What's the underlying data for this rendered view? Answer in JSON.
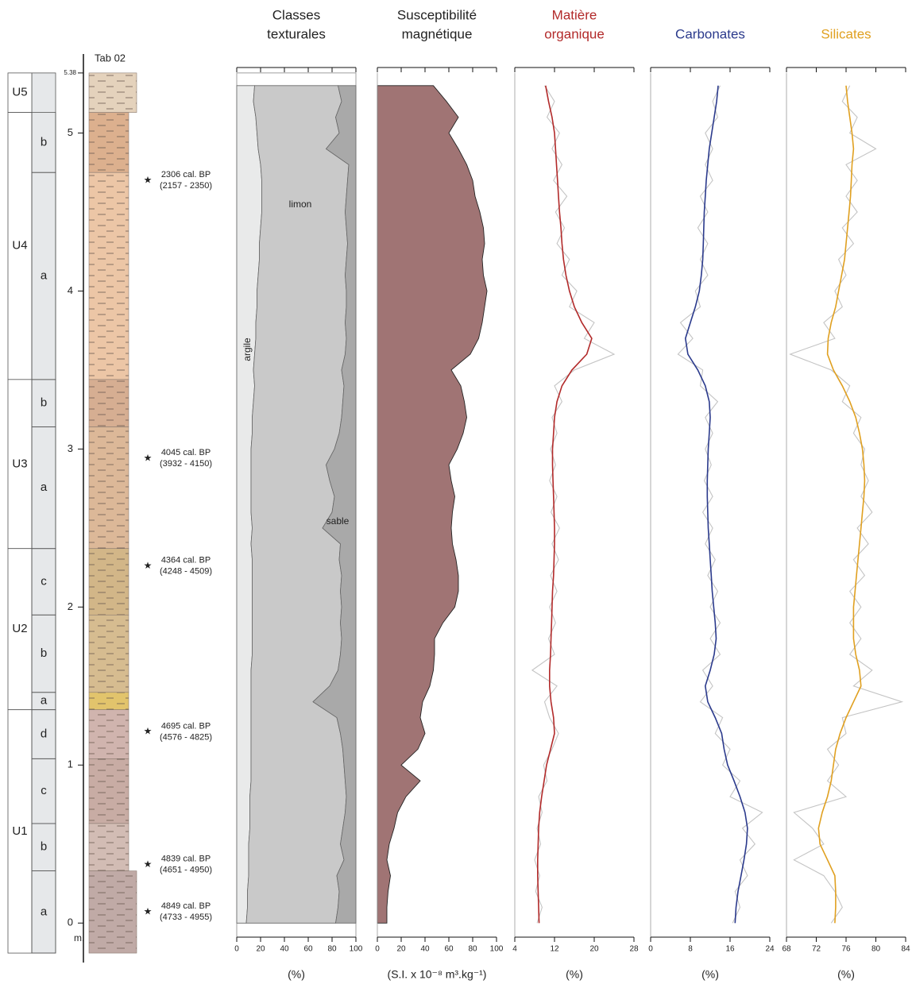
{
  "chart_data": [
    {
      "type": "strat-log",
      "title": "Tab 02",
      "unit_label": "m.",
      "top": 5.38,
      "ylim": [
        -0.25,
        5.5
      ],
      "yticks": [
        0,
        1,
        2,
        3,
        4,
        5
      ],
      "depth": [
        0.0,
        0.1,
        0.2,
        0.3,
        0.4,
        0.5,
        0.6,
        0.7,
        0.8,
        0.9,
        1.0,
        1.1,
        1.2,
        1.3,
        1.4,
        1.5,
        1.6,
        1.7,
        1.8,
        1.9,
        2.0,
        2.1,
        2.2,
        2.3,
        2.4,
        2.5,
        2.6,
        2.7,
        2.8,
        2.9,
        3.0,
        3.1,
        3.2,
        3.3,
        3.4,
        3.5,
        3.6,
        3.7,
        3.8,
        3.9,
        4.0,
        4.1,
        4.2,
        4.3,
        4.4,
        4.5,
        4.6,
        4.7,
        4.8,
        4.9,
        5.0,
        5.1,
        5.2,
        5.3
      ],
      "units": [
        {
          "name": "U5",
          "top": 5.38,
          "bottom": 5.13,
          "color": "#e4d2bc",
          "subunits": []
        },
        {
          "name": "U4",
          "top": 5.13,
          "bottom": 3.44,
          "subunits": [
            {
              "name": "b",
              "top": 5.13,
              "bottom": 4.75,
              "color": "#dcb08e"
            },
            {
              "name": "a",
              "top": 4.75,
              "bottom": 3.44,
              "color": "#ecc6a6"
            }
          ]
        },
        {
          "name": "U3",
          "top": 3.44,
          "bottom": 2.37,
          "subunits": [
            {
              "name": "b",
              "top": 3.44,
              "bottom": 3.14,
              "color": "#d6ae92"
            },
            {
              "name": "a",
              "top": 3.14,
              "bottom": 2.37,
              "color": "#dcb898"
            }
          ]
        },
        {
          "name": "U2",
          "top": 2.37,
          "bottom": 1.35,
          "subunits": [
            {
              "name": "c",
              "top": 2.37,
              "bottom": 1.95,
              "color": "#d2b688"
            },
            {
              "name": "b",
              "top": 1.95,
              "bottom": 1.46,
              "color": "#d6bc90"
            },
            {
              "name": "a",
              "top": 1.46,
              "bottom": 1.35,
              "color": "#e2c46c"
            }
          ]
        },
        {
          "name": "U1",
          "top": 1.35,
          "bottom": -0.19,
          "subunits": [
            {
              "name": "d",
              "top": 1.35,
              "bottom": 1.04,
              "color": "#d0b4ae"
            },
            {
              "name": "c",
              "top": 1.04,
              "bottom": 0.63,
              "color": "#c8aca4"
            },
            {
              "name": "b",
              "top": 0.63,
              "bottom": 0.33,
              "color": "#d2bcb4"
            },
            {
              "name": "a",
              "top": 0.33,
              "bottom": -0.19,
              "color": "#c0aaa6"
            }
          ]
        }
      ],
      "dates": [
        {
          "label": "2306 cal. BP",
          "range": "(2157 - 2350)",
          "depth": 4.7
        },
        {
          "label": "4045 cal. BP",
          "range": "(3932 - 4150)",
          "depth": 2.94
        },
        {
          "label": "4364 cal. BP",
          "range": "(4248 - 4509)",
          "depth": 2.26
        },
        {
          "label": "4695 cal. BP",
          "range": "(4576 - 4825)",
          "depth": 1.21
        },
        {
          "label": "4839 cal. BP",
          "range": "(4651 - 4950)",
          "depth": 0.37
        },
        {
          "label": "4849 cal. BP",
          "range": "(4733 - 4955)",
          "depth": 0.07
        }
      ]
    },
    {
      "type": "stacked-area",
      "title": [
        "Classes",
        "texturales"
      ],
      "title_color": "#222222",
      "xlabel": "(%)",
      "xlim": [
        0,
        100
      ],
      "xticks": [
        0,
        20,
        40,
        60,
        80,
        100
      ],
      "series": [
        {
          "name": "argile",
          "color": "#e9eaea",
          "values": [
            8,
            9,
            9,
            10,
            10,
            10,
            11,
            11,
            11,
            12,
            12,
            12,
            12,
            12,
            12,
            12,
            12,
            13,
            13,
            13,
            13,
            13,
            13,
            13,
            12,
            13,
            12,
            12,
            12,
            12,
            12,
            13,
            13,
            14,
            15,
            14,
            15,
            16,
            16,
            17,
            17,
            18,
            19,
            19,
            20,
            21,
            21,
            21,
            20,
            18,
            17,
            16,
            14,
            15
          ]
        },
        {
          "name": "limon",
          "color": "#c9c9c9",
          "values": [
            75,
            76,
            77,
            74,
            80,
            77,
            78,
            80,
            81,
            79,
            78,
            77,
            75,
            72,
            52,
            66,
            73,
            74,
            75,
            74,
            75,
            74,
            75,
            73,
            75,
            59,
            68,
            70,
            66,
            63,
            70,
            73,
            75,
            75,
            75,
            74,
            76,
            76,
            75,
            75,
            75,
            73,
            73,
            74,
            72,
            70,
            71,
            72,
            74,
            57,
            69,
            67,
            74,
            70
          ]
        },
        {
          "name": "sable",
          "color": "#a9a9a9",
          "values": [
            17,
            15,
            14,
            16,
            10,
            13,
            11,
            9,
            8,
            9,
            10,
            11,
            13,
            16,
            36,
            22,
            15,
            13,
            12,
            13,
            12,
            13,
            12,
            14,
            13,
            28,
            20,
            18,
            22,
            25,
            18,
            14,
            12,
            11,
            10,
            12,
            9,
            8,
            9,
            8,
            8,
            9,
            8,
            7,
            8,
            9,
            8,
            7,
            6,
            25,
            14,
            17,
            12,
            15
          ]
        }
      ]
    },
    {
      "type": "area",
      "title": [
        "Susceptibilité",
        "magnétique"
      ],
      "title_color": "#222222",
      "xlabel": "(S.I. x 10⁻⁸ m³.kg⁻¹)",
      "xlim": [
        0,
        100
      ],
      "xticks": [
        0,
        20,
        40,
        60,
        80,
        100
      ],
      "color": "#a07474",
      "values": [
        8,
        8,
        9,
        11,
        8,
        10,
        14,
        17,
        24,
        36,
        20,
        34,
        40,
        36,
        38,
        44,
        47,
        48,
        48,
        55,
        65,
        68,
        68,
        66,
        63,
        62,
        63,
        65,
        62,
        60,
        67,
        72,
        75,
        73,
        70,
        62,
        78,
        85,
        88,
        90,
        92,
        89,
        88,
        90,
        89,
        86,
        82,
        80,
        75,
        68,
        60,
        68,
        58,
        47
      ]
    },
    {
      "type": "line",
      "title": [
        "Matière",
        "organique"
      ],
      "title_color": "#b22a2a",
      "xlabel": "(%)",
      "xlim": [
        4,
        28
      ],
      "xticks": [
        4,
        12,
        20,
        28
      ],
      "series": [
        {
          "color": "#c4c4c4",
          "values": [
            8.5,
            9.5,
            8.2,
            9.0,
            8.0,
            9.2,
            8.5,
            9.5,
            8.8,
            10.5,
            9.8,
            11.5,
            12.8,
            11.0,
            10.0,
            12.5,
            7.5,
            12.0,
            10.8,
            12.2,
            11.0,
            12.5,
            11.2,
            12.8,
            11.5,
            13.0,
            11.3,
            12.5,
            11.0,
            12.2,
            11.2,
            12.5,
            11.5,
            13.5,
            12.0,
            16.0,
            24.0,
            18.0,
            20.0,
            15.0,
            16.5,
            13.5,
            15.0,
            12.5,
            14.0,
            12.2,
            14.5,
            11.8,
            13.5,
            11.5,
            13.0,
            10.5,
            12.0,
            10.0
          ]
        },
        {
          "color": "#b22a2a",
          "values": [
            8.9,
            8.8,
            8.7,
            8.6,
            8.6,
            8.7,
            8.8,
            9.0,
            9.4,
            9.9,
            10.4,
            11.2,
            12.0,
            11.8,
            11.3,
            11.0,
            11.0,
            11.2,
            11.3,
            11.4,
            11.5,
            11.6,
            11.8,
            11.9,
            12.0,
            12.0,
            11.9,
            11.8,
            11.7,
            11.6,
            11.6,
            11.8,
            12.0,
            12.5,
            13.5,
            15.5,
            18.5,
            19.5,
            17.5,
            16.0,
            15.0,
            14.3,
            13.8,
            13.5,
            13.3,
            13.0,
            12.8,
            12.6,
            12.4,
            12.2,
            12.0,
            11.5,
            10.8,
            10.2
          ]
        }
      ]
    },
    {
      "type": "line",
      "title": [
        "Carbonates"
      ],
      "title_color": "#2b3a8c",
      "xlabel": "(%)",
      "xlim": [
        0,
        24
      ],
      "xticks": [
        0,
        8,
        16,
        24
      ],
      "series": [
        {
          "color": "#c4c4c4",
          "values": [
            16.5,
            18.0,
            17.0,
            19.5,
            18.0,
            21.0,
            18.5,
            22.5,
            16.0,
            18.0,
            14.5,
            16.0,
            13.0,
            14.5,
            10.0,
            12.5,
            10.5,
            14.0,
            12.0,
            14.0,
            12.0,
            13.5,
            11.5,
            13.0,
            11.0,
            12.5,
            10.5,
            12.5,
            10.8,
            12.2,
            11.0,
            12.5,
            11.0,
            13.5,
            10.0,
            10.5,
            5.5,
            8.5,
            6.0,
            10.0,
            9.0,
            11.5,
            10.0,
            11.5,
            9.5,
            11.5,
            10.0,
            12.5,
            11.0,
            12.5,
            11.0,
            13.5,
            12.5,
            14.0
          ]
        },
        {
          "color": "#2b3a8c",
          "values": [
            17.0,
            17.2,
            17.6,
            18.2,
            18.8,
            19.3,
            19.5,
            19.0,
            18.0,
            16.8,
            15.5,
            14.8,
            14.3,
            13.0,
            11.5,
            11.0,
            12.0,
            12.8,
            13.2,
            13.0,
            12.7,
            12.4,
            12.2,
            12.0,
            11.8,
            11.6,
            11.5,
            11.4,
            11.4,
            11.5,
            11.6,
            11.8,
            12.0,
            11.8,
            11.0,
            9.5,
            7.5,
            7.0,
            8.0,
            9.0,
            9.8,
            10.2,
            10.5,
            10.6,
            10.7,
            10.8,
            11.0,
            11.2,
            11.5,
            11.8,
            12.3,
            12.8,
            13.3,
            13.6
          ]
        }
      ]
    },
    {
      "type": "line",
      "title": [
        "Silicates"
      ],
      "title_color": "#e0a020",
      "xlabel": "(%)",
      "xlim": [
        68,
        84
      ],
      "xticks": [
        68,
        72,
        76,
        80,
        84
      ],
      "series": [
        {
          "color": "#c4c4c4",
          "values": [
            74.0,
            75.5,
            74.5,
            73.0,
            69.0,
            73.0,
            71.5,
            69.0,
            76.0,
            73.5,
            75.0,
            73.5,
            76.0,
            75.5,
            83.5,
            77.0,
            79.5,
            76.5,
            78.0,
            76.5,
            78.0,
            76.5,
            78.5,
            77.0,
            79.0,
            77.5,
            79.5,
            78.0,
            79.0,
            78.0,
            78.5,
            77.0,
            78.0,
            75.5,
            76.5,
            74.0,
            68.5,
            74.5,
            73.0,
            75.5,
            74.5,
            76.0,
            75.0,
            77.0,
            75.5,
            77.5,
            76.0,
            77.5,
            76.0,
            80.0,
            76.5,
            77.5,
            75.5,
            76.5
          ]
        },
        {
          "color": "#e0a020",
          "values": [
            74.5,
            74.6,
            74.6,
            74.5,
            73.5,
            72.5,
            72.3,
            72.8,
            73.5,
            74.0,
            74.3,
            74.6,
            75.2,
            76.0,
            77.0,
            78.0,
            77.8,
            77.3,
            77.0,
            77.0,
            77.0,
            77.2,
            77.4,
            77.6,
            77.8,
            78.0,
            78.2,
            78.4,
            78.5,
            78.4,
            78.2,
            77.8,
            77.3,
            76.5,
            75.5,
            74.3,
            73.5,
            73.6,
            74.0,
            74.6,
            75.0,
            75.4,
            75.8,
            76.0,
            76.2,
            76.4,
            76.6,
            76.7,
            76.8,
            77.0,
            76.8,
            76.5,
            76.2,
            76.0
          ]
        }
      ]
    }
  ]
}
